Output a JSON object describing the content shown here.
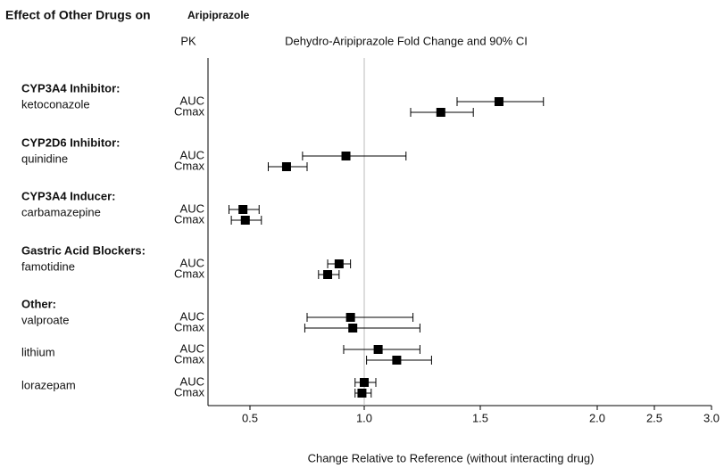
{
  "chart_data": {
    "type": "forest",
    "title": "Effect of Other Drugs on",
    "title_drug": "Aripiprazole",
    "pk_header": "PK",
    "subtitle": "Dehydro-Aripiprazole Fold Change and 90% CI",
    "xlabel": "Change Relative to Reference (without interacting drug)",
    "xlim": [
      0.32,
      3.0
    ],
    "xticks": [
      0.5,
      {
        "value": 1,
        "label": "1.0"
      },
      1.5,
      {
        "value": 2,
        "label": "2.0"
      },
      2.5,
      {
        "value": 3,
        "label": "3.0"
      }
    ],
    "reference_line": 1,
    "color": "#000000",
    "groups": [
      {
        "label": "CYP3A4 Inhibitor:",
        "drugs": [
          {
            "name": "ketoconazole",
            "measures": [
              "AUC",
              "Cmax"
            ],
            "values": [
              1.58,
              1.33
            ],
            "lower": [
              1.4,
              1.2
            ],
            "upper": [
              1.77,
              1.47
            ]
          }
        ]
      },
      {
        "label": "CYP2D6 Inhibitor:",
        "drugs": [
          {
            "name": "quinidine",
            "measures": [
              "AUC",
              "Cmax"
            ],
            "values": [
              0.92,
              0.66
            ],
            "lower": [
              0.73,
              0.58
            ],
            "upper": [
              1.18,
              0.75
            ]
          }
        ]
      },
      {
        "label": "CYP3A4 Inducer:",
        "drugs": [
          {
            "name": "carbamazepine",
            "measures": [
              "AUC",
              "Cmax"
            ],
            "values": [
              0.47,
              0.48
            ],
            "lower": [
              0.41,
              0.42
            ],
            "upper": [
              0.54,
              0.55
            ]
          }
        ]
      },
      {
        "label": "Gastric Acid Blockers:",
        "drugs": [
          {
            "name": "famotidine",
            "measures": [
              "AUC",
              "Cmax"
            ],
            "values": [
              0.89,
              0.84
            ],
            "lower": [
              0.84,
              0.8
            ],
            "upper": [
              0.94,
              0.89
            ]
          }
        ]
      },
      {
        "label": "Other:",
        "drugs": [
          {
            "name": "valproate",
            "measures": [
              "AUC",
              "Cmax"
            ],
            "values": [
              0.94,
              0.95
            ],
            "lower": [
              0.75,
              0.74
            ],
            "upper": [
              1.21,
              1.24
            ]
          },
          {
            "name": "lithium",
            "measures": [
              "AUC",
              "Cmax"
            ],
            "values": [
              1.06,
              1.14
            ],
            "lower": [
              0.91,
              1.01
            ],
            "upper": [
              1.24,
              1.29
            ]
          },
          {
            "name": "lorazepam",
            "measures": [
              "AUC",
              "Cmax"
            ],
            "values": [
              1.0,
              0.99
            ],
            "lower": [
              0.96,
              0.96
            ],
            "upper": [
              1.05,
              1.03
            ]
          }
        ]
      }
    ]
  }
}
